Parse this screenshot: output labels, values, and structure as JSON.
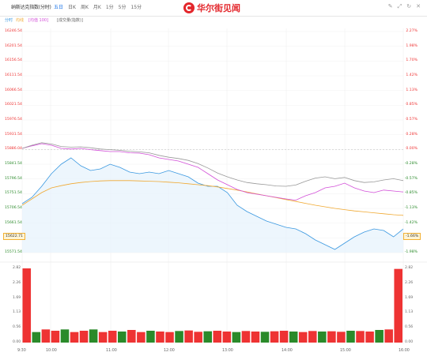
{
  "header": {
    "title": "纳斯达克指数(分时)",
    "tabs": [
      "五日",
      "日K",
      "周K",
      "月K",
      "1分",
      "5分",
      "15分"
    ],
    "active_tab": "五日",
    "logo_text": "华尔街见闻",
    "icons": [
      "pencil-icon",
      "expand-icon",
      "refresh-icon",
      "close-icon"
    ]
  },
  "subbar": {
    "labels": [
      "分时",
      "均线",
      "[均值 100]",
      "[成交量(指数)]"
    ]
  },
  "price_axis": {
    "left": [
      "16246.54",
      "16201.54",
      "16156.54",
      "16111.54",
      "16066.54",
      "16021.54",
      "15976.54",
      "15931.54",
      "15886.04",
      "15841.54",
      "15796.54",
      "15751.54",
      "15706.54",
      "15661.54",
      "15622.71",
      "15571.54"
    ],
    "right": [
      "2.27%",
      "1.98%",
      "1.70%",
      "1.42%",
      "1.13%",
      "0.85%",
      "0.57%",
      "0.28%",
      "0.00%",
      "-0.28%",
      "-0.57%",
      "-0.85%",
      "-1.13%",
      "-1.42%",
      "-1.66%",
      "-1.98%"
    ],
    "current_left": "15622.71",
    "current_right": "-1.66%"
  },
  "volume_axis": {
    "left": [
      "2.82",
      "2.26",
      "1.69",
      "1.13",
      "0.56",
      "0.00"
    ],
    "right": [
      "2.82",
      "2.26",
      "1.69",
      "1.13",
      "0.56",
      "0.00"
    ]
  },
  "time_axis": [
    "9:30",
    "10:00",
    "11:00",
    "12:00",
    "13:00",
    "14:00",
    "15:00",
    "16:00"
  ],
  "chart_data": {
    "type": "line",
    "series": [
      {
        "name": "分时",
        "color": "#3a98e0",
        "values": [
          15705,
          15725,
          15760,
          15800,
          15830,
          15850,
          15825,
          15810,
          15815,
          15830,
          15820,
          15805,
          15800,
          15805,
          15800,
          15810,
          15800,
          15790,
          15770,
          15760,
          15760,
          15740,
          15700,
          15680,
          15665,
          15650,
          15640,
          15630,
          15625,
          15610,
          15590,
          15575,
          15560,
          15580,
          15600,
          15615,
          15625,
          15620,
          15600,
          15625
        ]
      },
      {
        "name": "均线",
        "color": "#f0a830",
        "values": [
          15700,
          15720,
          15740,
          15755,
          15762,
          15768,
          15772,
          15775,
          15777,
          15778,
          15778,
          15778,
          15777,
          15776,
          15775,
          15773,
          15771,
          15768,
          15765,
          15762,
          15758,
          15753,
          15748,
          15742,
          15736,
          15730,
          15724,
          15718,
          15712,
          15706,
          15700,
          15695,
          15690,
          15686,
          15682,
          15679,
          15676,
          15673,
          15670,
          15668
        ]
      },
      {
        "color": "#d24fd8",
        "values": [
          15880,
          15888,
          15895,
          15890,
          15880,
          15878,
          15880,
          15876,
          15873,
          15870,
          15870,
          15866,
          15865,
          15860,
          15850,
          15845,
          15840,
          15830,
          15820,
          15800,
          15780,
          15765,
          15750,
          15740,
          15735,
          15730,
          15725,
          15720,
          15716,
          15730,
          15740,
          15755,
          15760,
          15770,
          15755,
          15745,
          15740,
          15748,
          15745,
          15742
        ]
      },
      {
        "color": "#999999",
        "values": [
          15880,
          15890,
          15898,
          15894,
          15886,
          15884,
          15885,
          15882,
          15878,
          15876,
          15874,
          15871,
          15869,
          15866,
          15858,
          15852,
          15848,
          15842,
          15832,
          15818,
          15802,
          15790,
          15780,
          15772,
          15768,
          15765,
          15761,
          15760,
          15764,
          15776,
          15786,
          15790,
          15784,
          15788,
          15778,
          15772,
          15774,
          15780,
          15784,
          15778
        ]
      }
    ],
    "volume": [
      3.0,
      0.4,
      0.5,
      0.45,
      0.5,
      0.4,
      0.45,
      0.5,
      0.4,
      0.45,
      0.42,
      0.48,
      0.4,
      0.45,
      0.42,
      0.4,
      0.44,
      0.46,
      0.41,
      0.43,
      0.45,
      0.42,
      0.4,
      0.44,
      0.42,
      0.41,
      0.43,
      0.45,
      0.42,
      0.4,
      0.44,
      0.42,
      0.43,
      0.41,
      0.45,
      0.44,
      0.42,
      0.48,
      0.5,
      2.8
    ],
    "ylim": [
      15550,
      16250
    ],
    "volume_ylim": [
      0,
      2.82
    ]
  }
}
